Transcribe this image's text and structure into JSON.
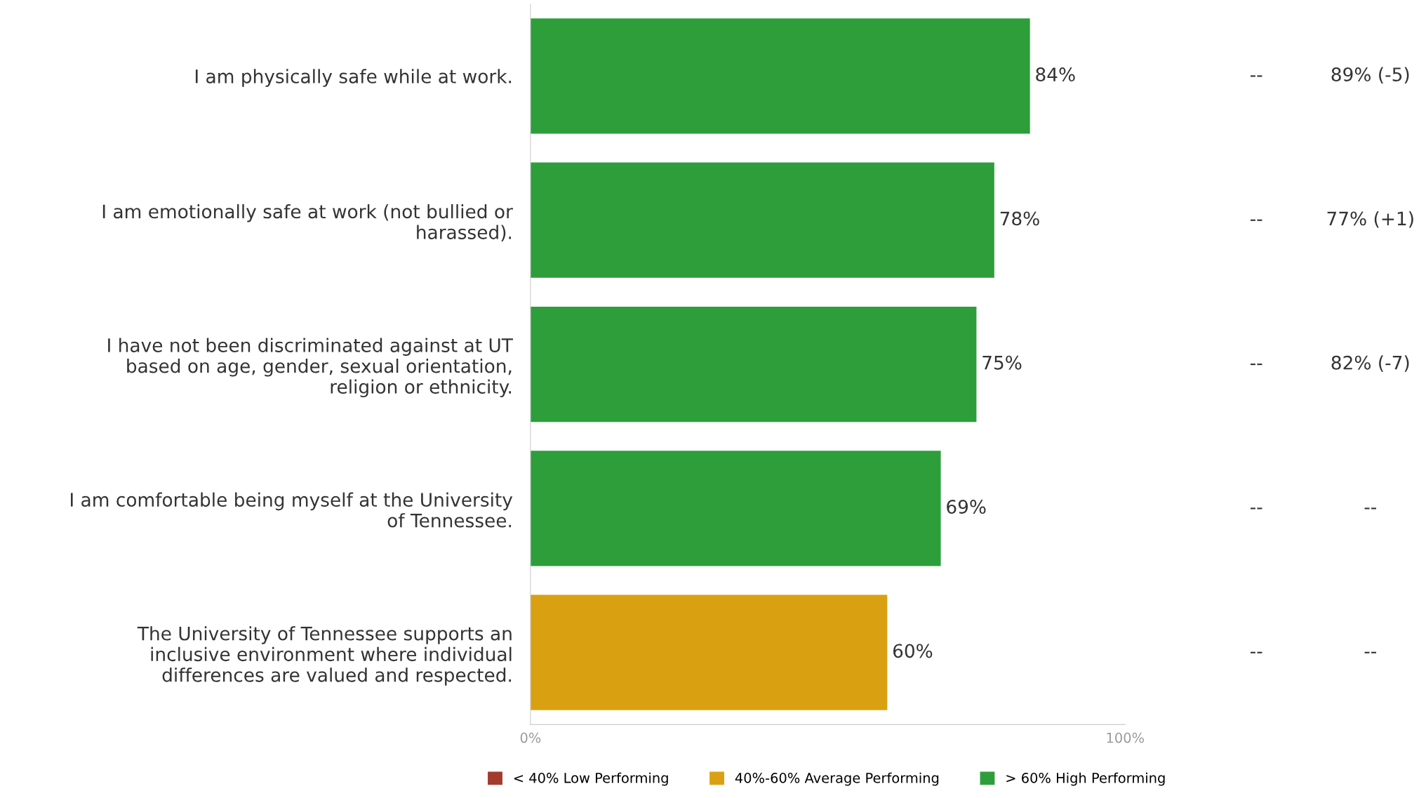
{
  "chart_data": {
    "type": "bar",
    "orientation": "horizontal",
    "categories": [
      "I am physically safe while at work.",
      "I am emotionally safe at work (not bullied or\nharassed).",
      "I have not been discriminated against at UT\nbased on age, gender, sexual orientation,\nreligion or ethnicity.",
      "I am comfortable being myself at the University\nof Tennessee.",
      "The University of Tennessee supports an\ninclusive environment where individual\ndifferences are valued and respected."
    ],
    "series": [
      {
        "name": "< 40% Low Performing",
        "color": "#a33b2e",
        "values": [
          null,
          null,
          null,
          null,
          null
        ]
      },
      {
        "name": "40%-60% Average Performing",
        "color": "#d9a111",
        "values": [
          null,
          null,
          null,
          null,
          60
        ]
      },
      {
        "name": "> 60% High Performing",
        "color": "#2d9e3a",
        "values": [
          84,
          78,
          75,
          69,
          null
        ]
      }
    ],
    "value_labels": [
      "84%",
      "78%",
      "75%",
      "69%",
      "60%"
    ],
    "xlim": [
      0,
      100
    ],
    "xticks": [
      {
        "value": 0,
        "label": "0%"
      },
      {
        "value": 100,
        "label": "100%"
      }
    ],
    "grid": false,
    "legend": "bottom",
    "annotations": [
      "--",
      "89% (-5)",
      "--",
      "77% (+1)",
      "--",
      "82% (-7)",
      "--",
      "--",
      "--",
      "--"
    ]
  }
}
